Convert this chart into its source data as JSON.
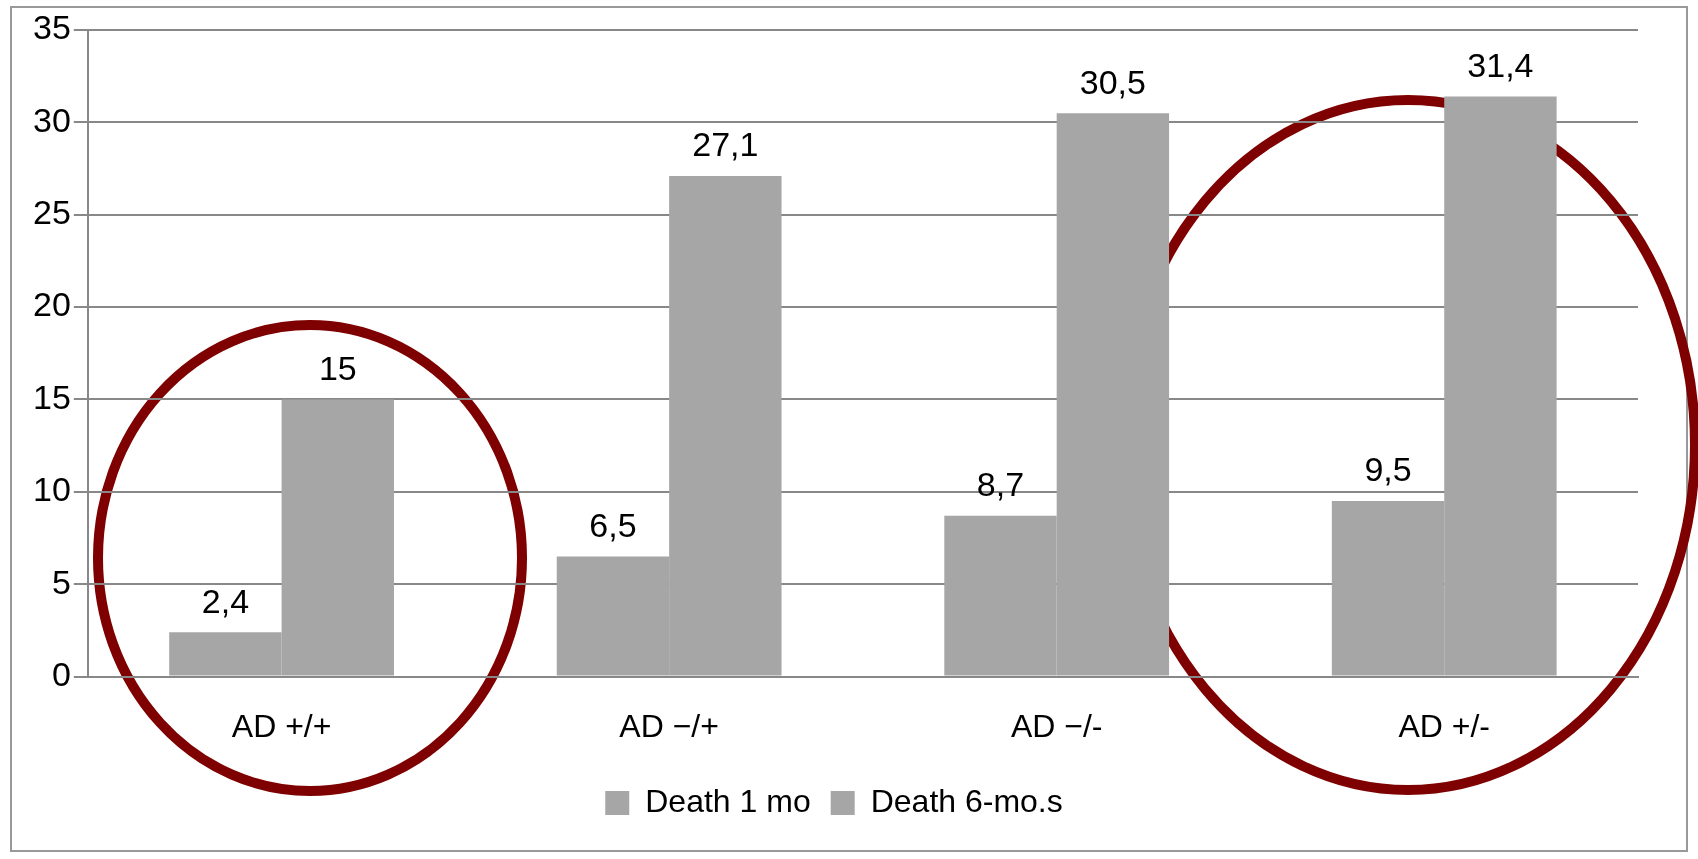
{
  "chart_data": {
    "type": "bar",
    "categories": [
      "AD +/+",
      "AD −/+",
      "AD −/-",
      "AD +/-"
    ],
    "series": [
      {
        "name": "Death 1 mo",
        "color": "#a6a6a6",
        "values": [
          2.4,
          6.5,
          8.7,
          9.5
        ],
        "value_labels": [
          "2,4",
          "6,5",
          "8,7",
          "9,5"
        ]
      },
      {
        "name": "Death 6-mo.s",
        "color": "#a6a6a6",
        "values": [
          15,
          27.1,
          30.5,
          31.4
        ],
        "value_labels": [
          "15",
          "27,1",
          "30,5",
          "31,4"
        ]
      }
    ],
    "ylim": [
      0,
      35
    ],
    "yticks": [
      0,
      5,
      10,
      15,
      20,
      25,
      30,
      35
    ],
    "grid": "y",
    "legend": "bottom"
  }
}
